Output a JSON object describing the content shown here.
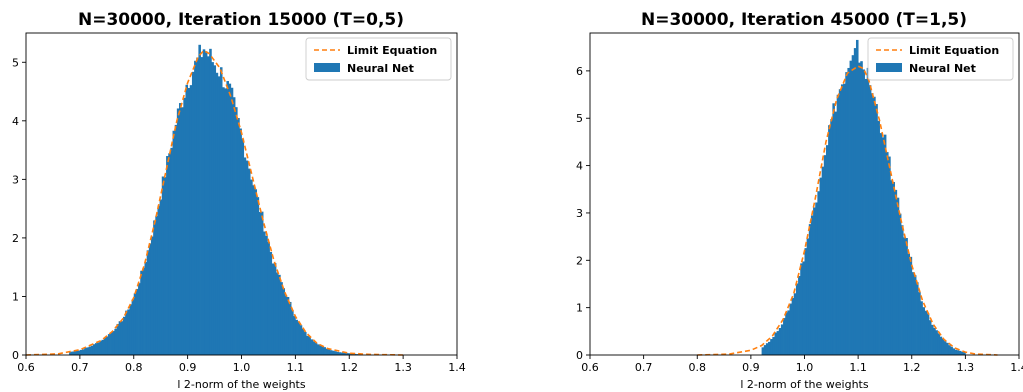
{
  "chart_data": [
    {
      "type": "bar",
      "title": "N=30000, Iteration 15000 (T=0,5)",
      "xlabel": "l 2-norm of the weights",
      "ylabel": "",
      "xlim": [
        0.6,
        1.4
      ],
      "ylim": [
        0,
        5.5
      ],
      "xticks": [
        "0.6",
        "0.7",
        "0.8",
        "0.9",
        "1.0",
        "1.1",
        "1.2",
        "1.3",
        "1.4"
      ],
      "yticks": [
        "0",
        "1",
        "2",
        "3",
        "4",
        "5"
      ],
      "legend": {
        "position": "top-right",
        "entries": [
          "Limit Equation",
          "Neural Net"
        ]
      },
      "series": [
        {
          "name": "Limit Equation",
          "kind": "line",
          "color": "#ff7f0e",
          "dashed": true,
          "x": [
            0.6,
            0.66,
            0.7,
            0.74,
            0.76,
            0.78,
            0.8,
            0.82,
            0.84,
            0.86,
            0.88,
            0.9,
            0.92,
            0.93,
            0.94,
            0.96,
            0.98,
            1.0,
            1.02,
            1.04,
            1.06,
            1.08,
            1.1,
            1.12,
            1.14,
            1.16,
            1.2,
            1.24,
            1.3
          ],
          "y": [
            0.0,
            0.02,
            0.09,
            0.25,
            0.4,
            0.62,
            0.98,
            1.55,
            2.3,
            3.15,
            4.0,
            4.65,
            5.1,
            5.2,
            5.15,
            4.9,
            4.42,
            3.8,
            3.05,
            2.3,
            1.62,
            1.08,
            0.66,
            0.38,
            0.2,
            0.11,
            0.03,
            0.01,
            0.0
          ]
        },
        {
          "name": "Neural Net",
          "kind": "histogram",
          "color": "#1f77b4",
          "x": [
            0.68,
            0.7,
            0.72,
            0.74,
            0.76,
            0.78,
            0.8,
            0.82,
            0.84,
            0.86,
            0.88,
            0.9,
            0.92,
            0.93,
            0.94,
            0.96,
            0.98,
            1.0,
            1.02,
            1.04,
            1.06,
            1.08,
            1.1,
            1.12,
            1.14,
            1.16,
            1.18,
            1.2,
            1.22
          ],
          "y": [
            0.05,
            0.08,
            0.15,
            0.25,
            0.4,
            0.62,
            0.98,
            1.55,
            2.32,
            3.2,
            4.05,
            4.7,
            5.05,
            5.25,
            5.1,
            4.85,
            4.45,
            3.75,
            3.0,
            2.28,
            1.55,
            1.1,
            0.65,
            0.35,
            0.2,
            0.1,
            0.05,
            0.03,
            0.01
          ]
        }
      ]
    },
    {
      "type": "bar",
      "title": "N=30000, Iteration 45000 (T=1,5)",
      "xlabel": "l 2-norm of the weights",
      "ylabel": "",
      "xlim": [
        0.6,
        1.4
      ],
      "ylim": [
        0,
        6.8
      ],
      "xticks": [
        "0.6",
        "0.7",
        "0.8",
        "0.9",
        "1.0",
        "1.1",
        "1.2",
        "1.3",
        "1.4"
      ],
      "yticks": [
        "0",
        "1",
        "2",
        "3",
        "4",
        "5",
        "6"
      ],
      "legend": {
        "position": "top-right",
        "entries": [
          "Limit Equation",
          "Neural Net"
        ]
      },
      "series": [
        {
          "name": "Limit Equation",
          "kind": "line",
          "color": "#ff7f0e",
          "dashed": true,
          "x": [
            0.8,
            0.86,
            0.9,
            0.92,
            0.94,
            0.96,
            0.98,
            1.0,
            1.02,
            1.04,
            1.06,
            1.08,
            1.1,
            1.11,
            1.12,
            1.14,
            1.16,
            1.18,
            1.2,
            1.22,
            1.24,
            1.26,
            1.28,
            1.3,
            1.32,
            1.34,
            1.36
          ],
          "y": [
            0.0,
            0.02,
            0.1,
            0.2,
            0.4,
            0.75,
            1.3,
            2.2,
            3.3,
            4.5,
            5.4,
            5.95,
            6.1,
            6.05,
            5.8,
            4.95,
            3.9,
            2.85,
            1.9,
            1.15,
            0.65,
            0.33,
            0.15,
            0.06,
            0.02,
            0.01,
            0.0
          ]
        },
        {
          "name": "Neural Net",
          "kind": "histogram",
          "color": "#1f77b4",
          "x": [
            0.92,
            0.94,
            0.96,
            0.98,
            1.0,
            1.02,
            1.04,
            1.06,
            1.08,
            1.1,
            1.11,
            1.12,
            1.14,
            1.16,
            1.18,
            1.2,
            1.22,
            1.24,
            1.26,
            1.28,
            1.3
          ],
          "y": [
            0.15,
            0.35,
            0.7,
            1.25,
            2.15,
            3.25,
            4.45,
            5.45,
            5.9,
            6.45,
            6.1,
            5.8,
            5.0,
            3.95,
            2.85,
            1.9,
            1.1,
            0.6,
            0.3,
            0.12,
            0.05
          ]
        }
      ]
    }
  ]
}
